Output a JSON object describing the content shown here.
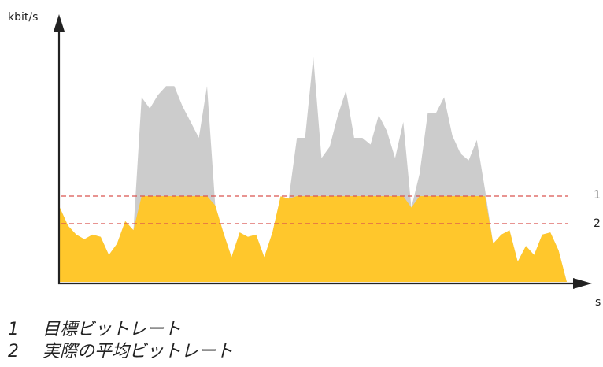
{
  "axes": {
    "y_label": "kbit/s",
    "x_label": "s"
  },
  "reference_lines": [
    {
      "label": "1",
      "style": "dashed",
      "color": "#d9534f"
    },
    {
      "label": "2",
      "style": "dashed",
      "color": "#d9534f"
    }
  ],
  "legend": [
    {
      "number": "1",
      "text": "目標ビットレート"
    },
    {
      "number": "2",
      "text": "実際の平均ビットレート"
    }
  ],
  "colors": {
    "actual_bitrate": "#ffc72c",
    "excess_bitrate": "#cccccc",
    "axis": "#222222",
    "reference": "#d9534f"
  },
  "chart_data": {
    "type": "area",
    "series": [
      {
        "values": [
          0.33,
          0.25,
          0.21,
          0.19,
          0.21,
          0.2,
          0.12,
          0.17,
          0.27,
          0.23,
          0.82,
          0.77,
          0.83,
          0.87,
          0.87,
          0.78,
          0.71,
          0.64,
          0.87,
          0.34,
          0.22,
          0.11,
          0.22,
          0.2,
          0.21,
          0.11,
          0.22,
          0.38,
          0.37,
          0.64,
          0.64,
          1.0,
          0.55,
          0.6,
          0.74,
          0.85,
          0.64,
          0.64,
          0.61,
          0.74,
          0.67,
          0.55,
          0.71,
          0.33,
          0.48,
          0.75,
          0.75,
          0.82,
          0.65,
          0.57,
          0.54,
          0.63,
          0.41,
          0.17,
          0.21,
          0.23,
          0.09,
          0.16,
          0.12,
          0.21,
          0.22,
          0.14,
          0.0
        ]
      }
    ]
  }
}
